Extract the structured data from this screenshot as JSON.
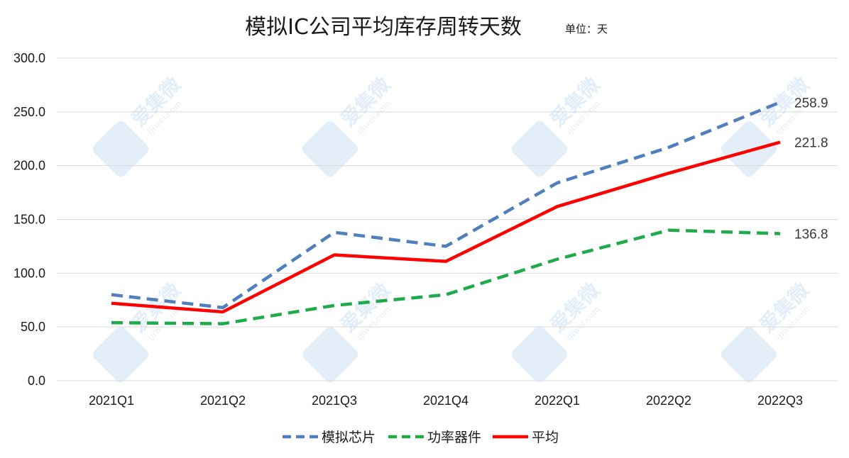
{
  "chart_data": {
    "type": "line",
    "title": "模拟IC公司平均库存周转天数",
    "unit": "单位：天",
    "categories": [
      "2021Q1",
      "2021Q2",
      "2021Q3",
      "2021Q4",
      "2022Q1",
      "2022Q2",
      "2022Q3"
    ],
    "y_ticks": [
      "0.0",
      "50.0",
      "100.0",
      "150.0",
      "200.0",
      "250.0",
      "300.0"
    ],
    "ylim": [
      0,
      300
    ],
    "grid": true,
    "legend_position": "bottom",
    "series": [
      {
        "name": "模拟芯片",
        "color": "#4f7fbd",
        "dash": "dashed",
        "values": [
          80,
          68,
          138,
          125,
          184,
          217,
          258.9
        ],
        "end_label": "258.9"
      },
      {
        "name": "功率器件",
        "color": "#1faa4c",
        "dash": "dashed",
        "values": [
          54,
          53,
          70,
          80,
          113,
          140,
          136.8
        ],
        "end_label": "136.8"
      },
      {
        "name": "平均",
        "color": "#ff0000",
        "dash": "solid",
        "values": [
          72,
          64,
          117,
          111,
          162,
          193,
          221.8
        ],
        "end_label": "221.8"
      }
    ]
  },
  "watermark": {
    "text": "爱集微",
    "url": "ijiwei.com",
    "color": "#e3eef9"
  }
}
